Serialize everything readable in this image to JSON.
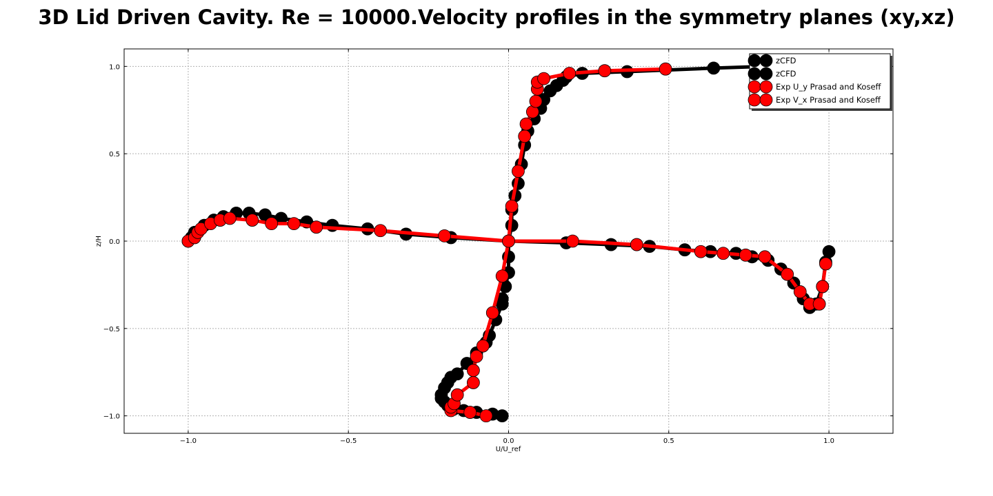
{
  "chart_data": {
    "type": "line",
    "title": "3D Lid Driven Cavity. Re = 10000.Velocity profiles in the symmetry planes (xy,xz)",
    "xlabel": "U/U_ref",
    "ylabel": "z/H",
    "xlim": [
      -1.2,
      1.2
    ],
    "ylim": [
      -1.1,
      1.1
    ],
    "xticks": [
      -1.0,
      -0.5,
      0.0,
      0.5,
      1.0
    ],
    "xtick_labels": [
      "−1.0",
      "−0.5",
      "0.0",
      "0.5",
      "1.0"
    ],
    "yticks": [
      1.0,
      0.5,
      0.0,
      -0.5,
      -1.0
    ],
    "ytick_labels": [
      "1.0",
      "0.5",
      "0.0",
      "−0.5",
      "−1.0"
    ],
    "grid": true,
    "legend_position": "top-right",
    "series": [
      {
        "name": "zCFD",
        "color": "#000000",
        "points": [
          [
            -0.02,
            -1.0
          ],
          [
            -0.05,
            -0.99
          ],
          [
            -0.1,
            -0.98
          ],
          [
            -0.14,
            -0.97
          ],
          [
            -0.17,
            -0.96
          ],
          [
            -0.19,
            -0.94
          ],
          [
            -0.2,
            -0.92
          ],
          [
            -0.21,
            -0.9
          ],
          [
            -0.21,
            -0.88
          ],
          [
            -0.2,
            -0.84
          ],
          [
            -0.19,
            -0.81
          ],
          [
            -0.18,
            -0.78
          ],
          [
            -0.16,
            -0.76
          ],
          [
            -0.13,
            -0.7
          ],
          [
            -0.1,
            -0.64
          ],
          [
            -0.07,
            -0.58
          ],
          [
            -0.06,
            -0.54
          ],
          [
            -0.04,
            -0.45
          ],
          [
            -0.02,
            -0.36
          ],
          [
            -0.02,
            -0.33
          ],
          [
            -0.01,
            -0.26
          ],
          [
            0.0,
            -0.18
          ],
          [
            0.0,
            -0.09
          ],
          [
            0.0,
            0.0
          ],
          [
            0.01,
            0.09
          ],
          [
            0.01,
            0.18
          ],
          [
            0.02,
            0.26
          ],
          [
            0.03,
            0.33
          ],
          [
            0.04,
            0.44
          ],
          [
            0.05,
            0.55
          ],
          [
            0.06,
            0.63
          ],
          [
            0.08,
            0.7
          ],
          [
            0.1,
            0.76
          ],
          [
            0.11,
            0.81
          ],
          [
            0.13,
            0.86
          ],
          [
            0.15,
            0.89
          ],
          [
            0.17,
            0.92
          ],
          [
            0.18,
            0.94
          ],
          [
            0.23,
            0.96
          ],
          [
            0.37,
            0.97
          ],
          [
            0.64,
            0.99
          ],
          [
            0.8,
            1.0
          ]
        ]
      },
      {
        "name": "zCFD",
        "color": "#000000",
        "points": [
          [
            -1.0,
            0.0
          ],
          [
            -0.99,
            0.02
          ],
          [
            -0.98,
            0.05
          ],
          [
            -0.95,
            0.09
          ],
          [
            -0.92,
            0.12
          ],
          [
            -0.89,
            0.14
          ],
          [
            -0.85,
            0.16
          ],
          [
            -0.81,
            0.16
          ],
          [
            -0.76,
            0.15
          ],
          [
            -0.71,
            0.13
          ],
          [
            -0.63,
            0.11
          ],
          [
            -0.55,
            0.09
          ],
          [
            -0.44,
            0.07
          ],
          [
            -0.32,
            0.04
          ],
          [
            -0.18,
            0.02
          ],
          [
            0.0,
            0.0
          ],
          [
            0.18,
            -0.01
          ],
          [
            0.32,
            -0.02
          ],
          [
            0.44,
            -0.03
          ],
          [
            0.55,
            -0.05
          ],
          [
            0.63,
            -0.06
          ],
          [
            0.71,
            -0.07
          ],
          [
            0.76,
            -0.09
          ],
          [
            0.81,
            -0.11
          ],
          [
            0.85,
            -0.16
          ],
          [
            0.89,
            -0.24
          ],
          [
            0.92,
            -0.33
          ],
          [
            0.94,
            -0.38
          ],
          [
            0.96,
            -0.36
          ],
          [
            0.98,
            -0.26
          ],
          [
            0.99,
            -0.12
          ],
          [
            1.0,
            -0.06
          ]
        ]
      },
      {
        "name": "Exp U_y Prasad and Koseff",
        "color": "#ff0000",
        "points": [
          [
            -0.07,
            -1.0
          ],
          [
            -0.12,
            -0.98
          ],
          [
            -0.18,
            -0.97
          ],
          [
            -0.18,
            -0.95
          ],
          [
            -0.17,
            -0.93
          ],
          [
            -0.16,
            -0.88
          ],
          [
            -0.11,
            -0.81
          ],
          [
            -0.11,
            -0.74
          ],
          [
            -0.1,
            -0.66
          ],
          [
            -0.08,
            -0.6
          ],
          [
            -0.05,
            -0.41
          ],
          [
            -0.02,
            -0.2
          ],
          [
            0.0,
            0.0
          ],
          [
            0.01,
            0.2
          ],
          [
            0.03,
            0.4
          ],
          [
            0.05,
            0.6
          ],
          [
            0.055,
            0.67
          ],
          [
            0.075,
            0.74
          ],
          [
            0.085,
            0.8
          ],
          [
            0.09,
            0.87
          ],
          [
            0.09,
            0.91
          ],
          [
            0.11,
            0.93
          ],
          [
            0.19,
            0.96
          ],
          [
            0.3,
            0.975
          ],
          [
            0.49,
            0.985
          ]
        ]
      },
      {
        "name": "Exp V_x Prasad and Koseff",
        "color": "#ff0000",
        "points": [
          [
            -1.0,
            0.0
          ],
          [
            -0.98,
            0.02
          ],
          [
            -0.97,
            0.05
          ],
          [
            -0.96,
            0.07
          ],
          [
            -0.93,
            0.1
          ],
          [
            -0.9,
            0.12
          ],
          [
            -0.87,
            0.13
          ],
          [
            -0.8,
            0.12
          ],
          [
            -0.74,
            0.1
          ],
          [
            -0.67,
            0.1
          ],
          [
            -0.6,
            0.08
          ],
          [
            -0.4,
            0.06
          ],
          [
            -0.2,
            0.03
          ],
          [
            0.0,
            0.0
          ],
          [
            0.2,
            0.0
          ],
          [
            0.4,
            -0.02
          ],
          [
            0.6,
            -0.06
          ],
          [
            0.67,
            -0.07
          ],
          [
            0.74,
            -0.08
          ],
          [
            0.8,
            -0.09
          ],
          [
            0.87,
            -0.19
          ],
          [
            0.91,
            -0.29
          ],
          [
            0.94,
            -0.36
          ],
          [
            0.97,
            -0.36
          ],
          [
            0.98,
            -0.26
          ],
          [
            0.99,
            -0.13
          ]
        ]
      }
    ]
  }
}
